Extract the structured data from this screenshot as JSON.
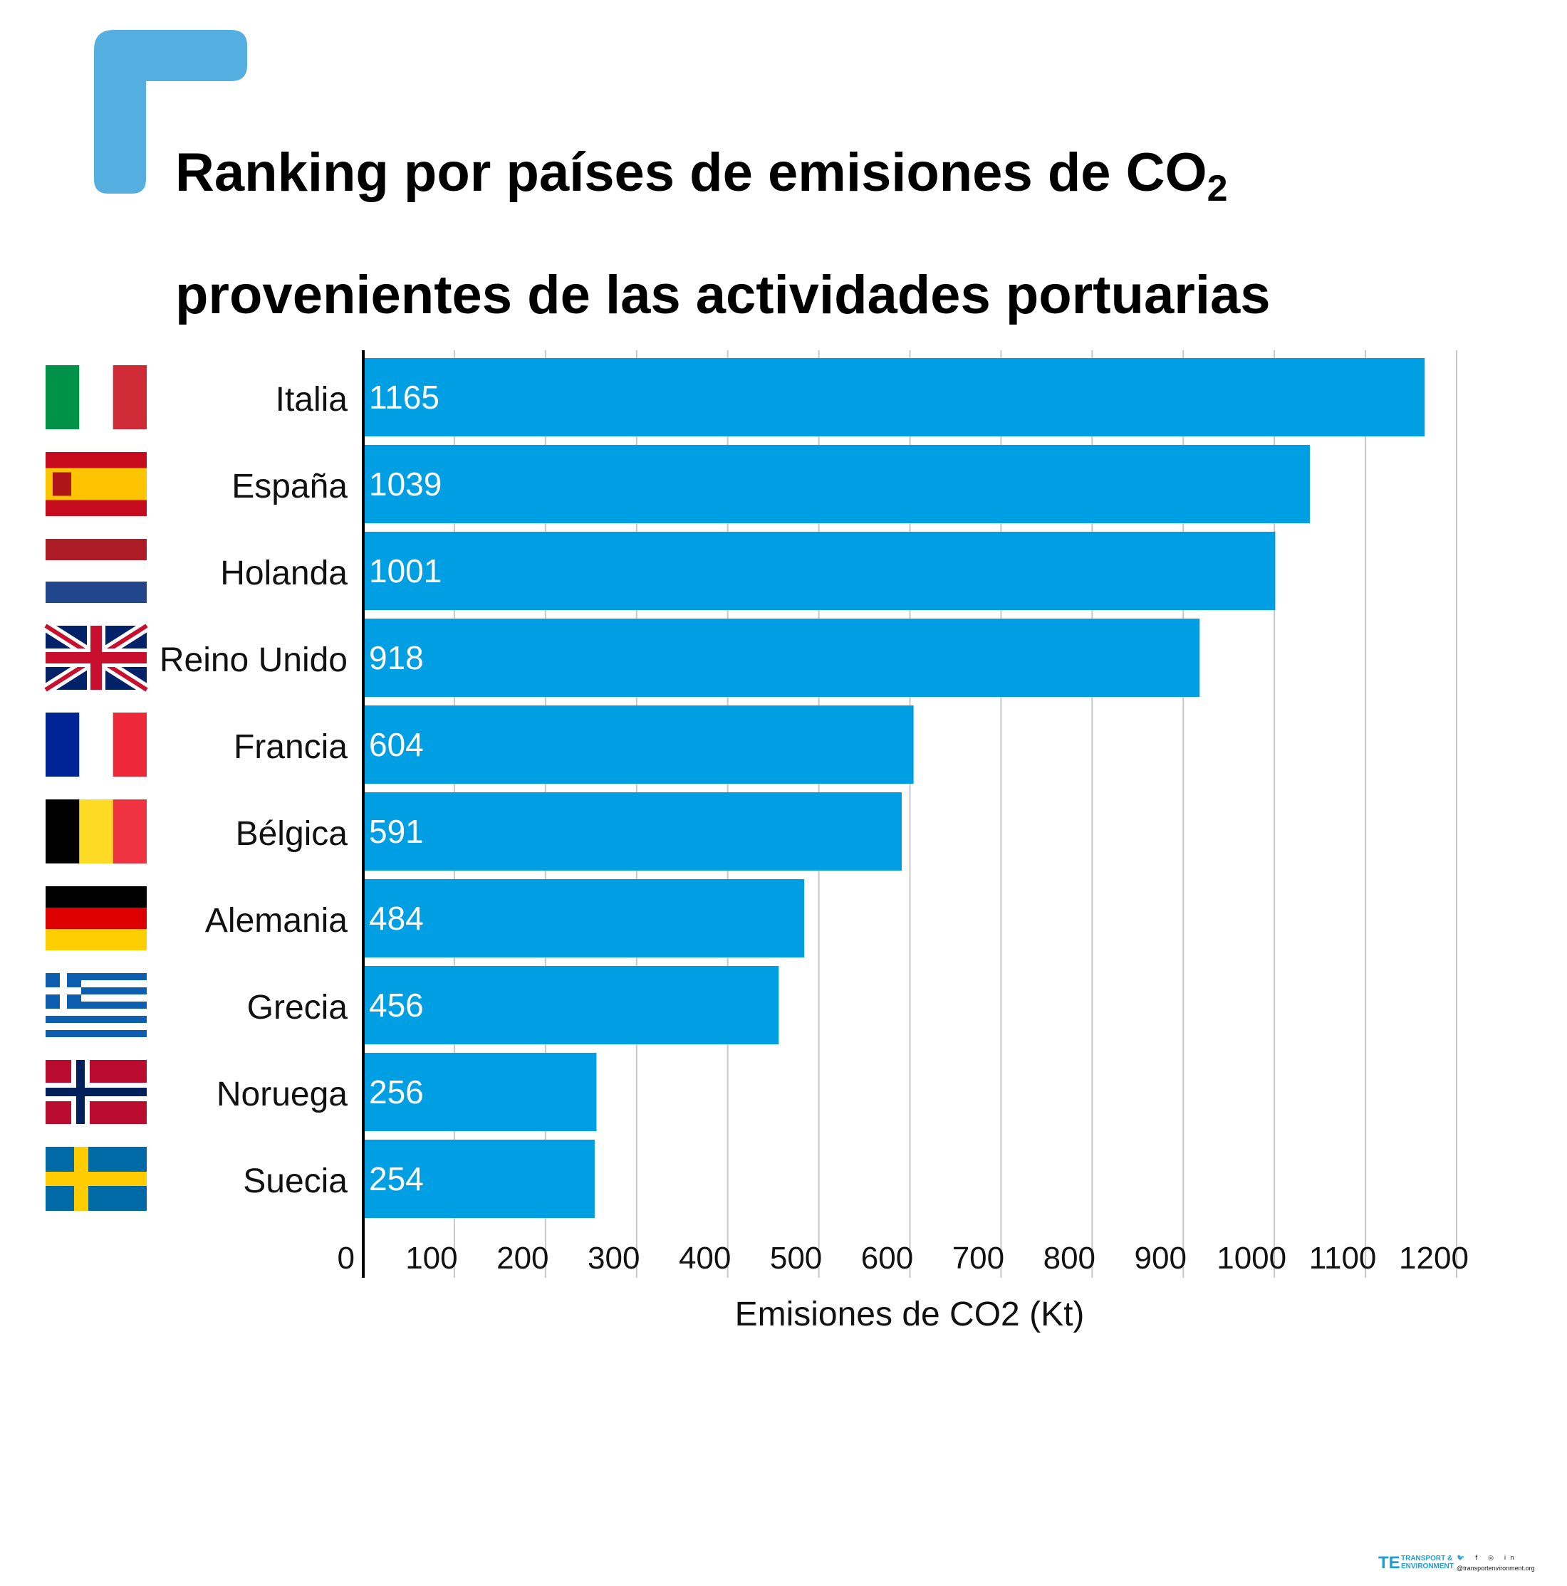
{
  "title": {
    "line1": "Ranking por países de emisiones de CO",
    "line1_sub": "2",
    "line2": "provenientes de las actividades portuarias"
  },
  "colors": {
    "bar": "#009fe3",
    "corner_mark": "#55aee0",
    "grid": "#c8c8c8",
    "axis": "#000000",
    "value_text": "#ffffff"
  },
  "chart_data": {
    "type": "bar",
    "orientation": "horizontal",
    "categories": [
      "Italia",
      "España",
      "Holanda",
      "Reino Unido",
      "Francia",
      "Bélgica",
      "Alemania",
      "Grecia",
      "Noruega",
      "Suecia"
    ],
    "values": [
      1165,
      1039,
      1001,
      918,
      604,
      591,
      484,
      456,
      256,
      254
    ],
    "xlabel": "Emisiones de CO2 (Kt)",
    "ylabel": "",
    "xlim": [
      0,
      1200
    ],
    "xticks": [
      "0",
      "100",
      "200",
      "300",
      "400",
      "500",
      "600",
      "700",
      "800",
      "900",
      "1000",
      "1100",
      "1200"
    ],
    "grid": true,
    "data_labels": true,
    "flags": [
      "italy-flag",
      "spain-flag",
      "netherlands-flag",
      "uk-flag",
      "france-flag",
      "belgium-flag",
      "germany-flag",
      "greece-flag",
      "norway-flag",
      "sweden-flag"
    ]
  },
  "footer": {
    "logo_mark": "TE",
    "brand": "TRANSPORT &\nENVIRONMENT",
    "social_icons": [
      "twitter-icon",
      "facebook-icon",
      "instagram-icon",
      "linkedin-icon"
    ],
    "website": "@transportenvironment.org"
  }
}
